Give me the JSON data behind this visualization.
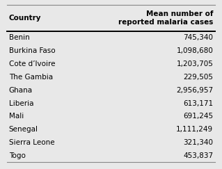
{
  "col1_header": "Country",
  "col2_header": "Mean number of\nreported malaria cases",
  "countries": [
    "Benin",
    "Burkina Faso",
    "Cote d’Ivoire",
    "The Gambia",
    "Ghana",
    "Liberia",
    "Mali",
    "Senegal",
    "Sierra Leone",
    "Togo"
  ],
  "values": [
    "745,340",
    "1,098,680",
    "1,203,705",
    "229,505",
    "2,956,957",
    "613,171",
    "691,245",
    "1,111,249",
    "321,340",
    "453,837"
  ],
  "bg_color": "#e8e8e8",
  "header_fontsize": 7.5,
  "row_fontsize": 7.5,
  "fig_width": 3.19,
  "fig_height": 2.43,
  "dpi": 100
}
